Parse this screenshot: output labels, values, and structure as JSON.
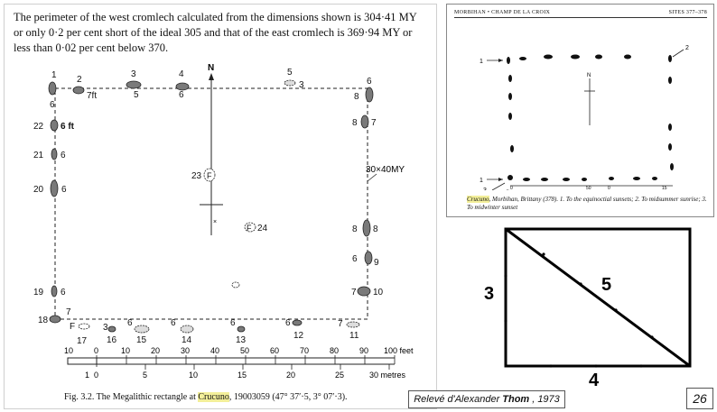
{
  "left_figure": {
    "paragraph": "The perimeter of the west cromlech calculated from the dimensions shown is 304·41 MY or only 0·2 per cent short of the ideal 305 and that of the east cromlech is 369·94 MY or less than 0·02 per cent below 370.",
    "caption_prefix": "Fig. 3.2.  The Megalithic rectangle at ",
    "caption_highlight": "Crucuno",
    "caption_suffix": ", 19003059 (47° 37′·5, 3° 07′·3).",
    "north_label": "N",
    "dimension_label": "30×40MY",
    "stone_labels": {
      "s1": "1",
      "s2": "2",
      "s3": "3",
      "s4": "4",
      "s5": "5",
      "s5b": "5",
      "s6a": "6",
      "s6b": "6",
      "s6c": "6",
      "s6d": "6",
      "s7ft": "7ft",
      "s3b": "3",
      "s8a": "8",
      "s7a": "7",
      "s22": "22",
      "s6ft": "6 ft",
      "s21": "21",
      "s6e": "6",
      "s20": "20",
      "s6f": "6",
      "s23": "23",
      "f1": "F",
      "s8b": "8",
      "s8c": "8",
      "s24": "24",
      "f2": "F",
      "s6g": "6",
      "s9": "9",
      "s19": "19",
      "s6h": "6",
      "s7b": "7",
      "s10": "10",
      "s18": "18",
      "s7c": "7",
      "f3": "F",
      "s17": "17",
      "s3c": "3",
      "s16": "16",
      "s6i": "6",
      "s15": "15",
      "s6j": "6",
      "s14": "14",
      "s6k": "6",
      "s13": "13",
      "s6l": "6",
      "s12": "12",
      "s7d": "7",
      "s11": "11"
    },
    "scale_feet": [
      "10",
      "0",
      "10",
      "20",
      "30",
      "40",
      "50",
      "60",
      "70",
      "80",
      "90",
      "100 feet"
    ],
    "scale_metres": [
      "1",
      "0",
      "5",
      "10",
      "15",
      "20",
      "25",
      "30 metres"
    ]
  },
  "right_figure": {
    "header_left": "MORBIHAN • CHAMP DE LA CROIX",
    "header_right": "SITES 377–378",
    "marker_1a": "1",
    "marker_2": "2",
    "marker_1b": "1",
    "marker_3": "3",
    "north_label": "N",
    "scale_ft": "ft",
    "scale_0": "0",
    "scale_50": "50",
    "scale_0b": "0",
    "scale_15": "15",
    "scale_m": "m",
    "caption_highlight": "Crucuno",
    "caption_rest": ", Morbihan, Brittany (378). 1. To the equinoctial sunsets; 2. To midsummer sunrise; 3. To midwinter sunset"
  },
  "triangle": {
    "side_left": "3",
    "side_bottom": "4",
    "hypotenuse": "5"
  },
  "credit": {
    "prefix": "Relevé d'Alexander",
    "name": "Thom",
    "suffix": ", 1973"
  },
  "page_number": "26"
}
